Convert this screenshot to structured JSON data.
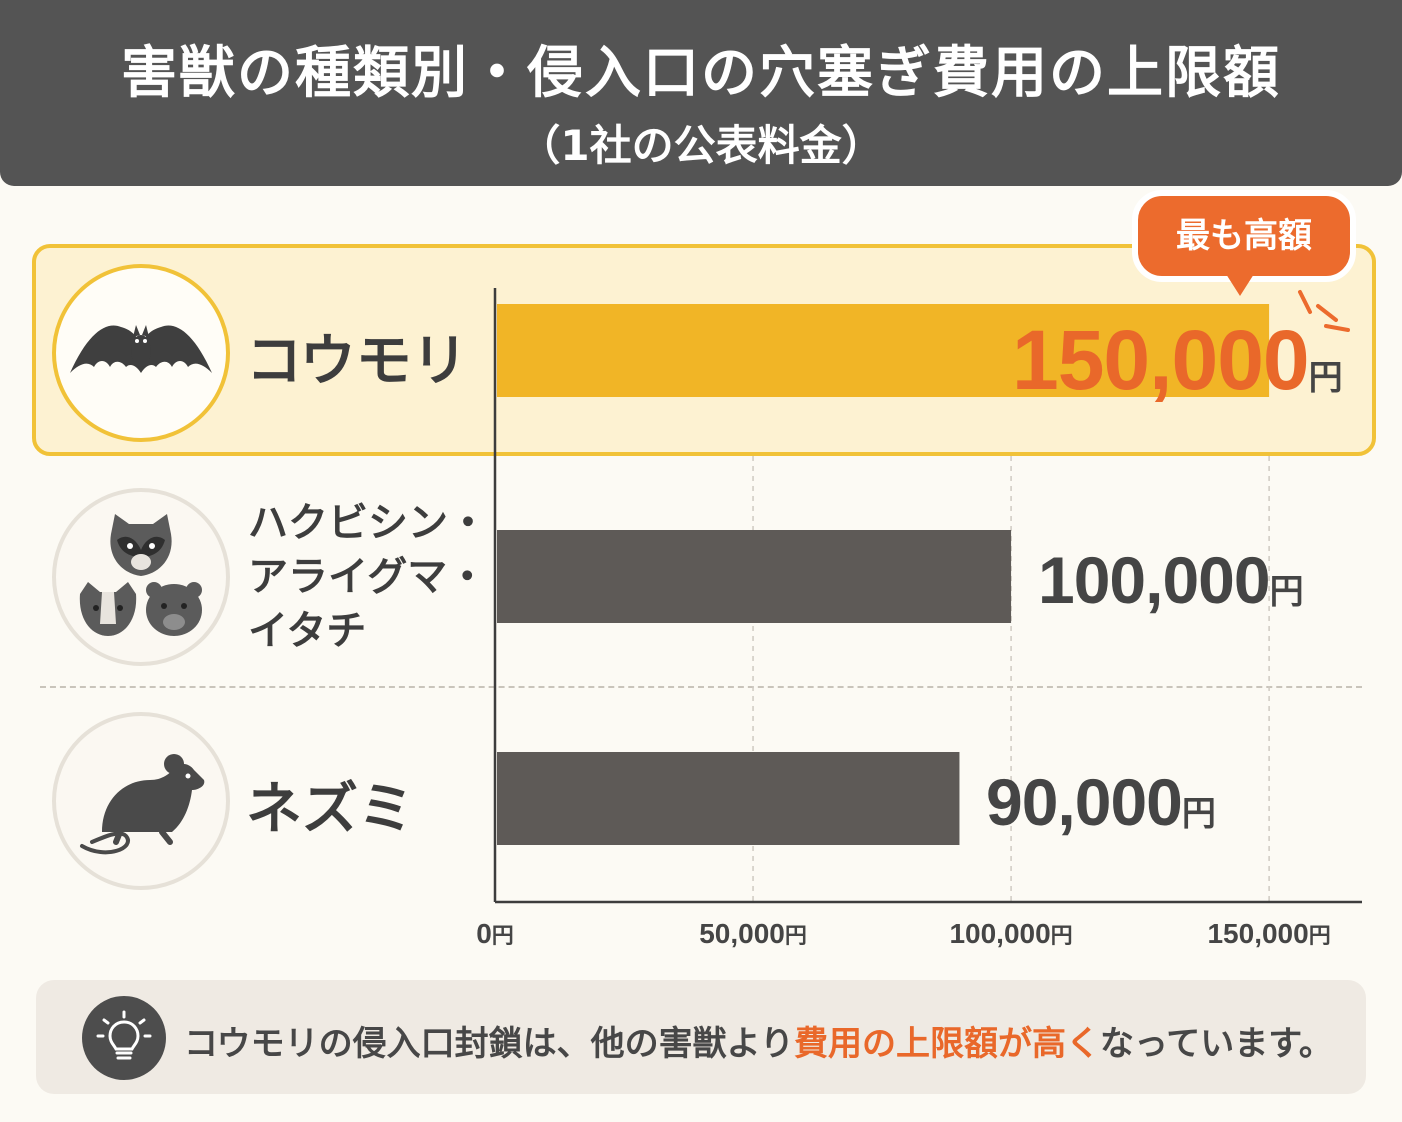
{
  "header": {
    "title": "害獣の種類別・侵入口の穴塞ぎ費用の上限額",
    "subtitle": "（1社の公表料金）"
  },
  "badge": "最も高額",
  "colors": {
    "highlight": "#f1b526",
    "bar": "#5e5a57",
    "accent": "#ec6b2d"
  },
  "rows": [
    {
      "icon": "bat-icon",
      "label_lines": [
        "コウモリ"
      ],
      "value_num": "150,000",
      "unit": "円"
    },
    {
      "icon": "masked-animals-icon",
      "label_lines": [
        "ハクビシン・",
        "アライグマ・",
        "イタチ"
      ],
      "value_num": "100,000",
      "unit": "円"
    },
    {
      "icon": "mouse-icon",
      "label_lines": [
        "ネズミ"
      ],
      "value_num": "90,000",
      "unit": "円"
    }
  ],
  "chart_data": {
    "type": "bar",
    "orientation": "horizontal",
    "categories": [
      "コウモリ",
      "ハクビシン・アライグマ・イタチ",
      "ネズミ"
    ],
    "values": [
      150000,
      100000,
      90000
    ],
    "xlim": [
      0,
      168000
    ],
    "ticks": [
      {
        "num": "0",
        "unit": "円",
        "value": 0
      },
      {
        "num": "50,000",
        "unit": "円",
        "value": 50000
      },
      {
        "num": "100,000",
        "unit": "円",
        "value": 100000
      },
      {
        "num": "150,000",
        "unit": "円",
        "value": 150000
      }
    ],
    "grid": true
  },
  "note": {
    "icon": "lightbulb-icon",
    "before": "コウモリの侵入口封鎖は、他の害獣より",
    "emphasis": "費用の上限額が高く",
    "after": "なっています。"
  }
}
